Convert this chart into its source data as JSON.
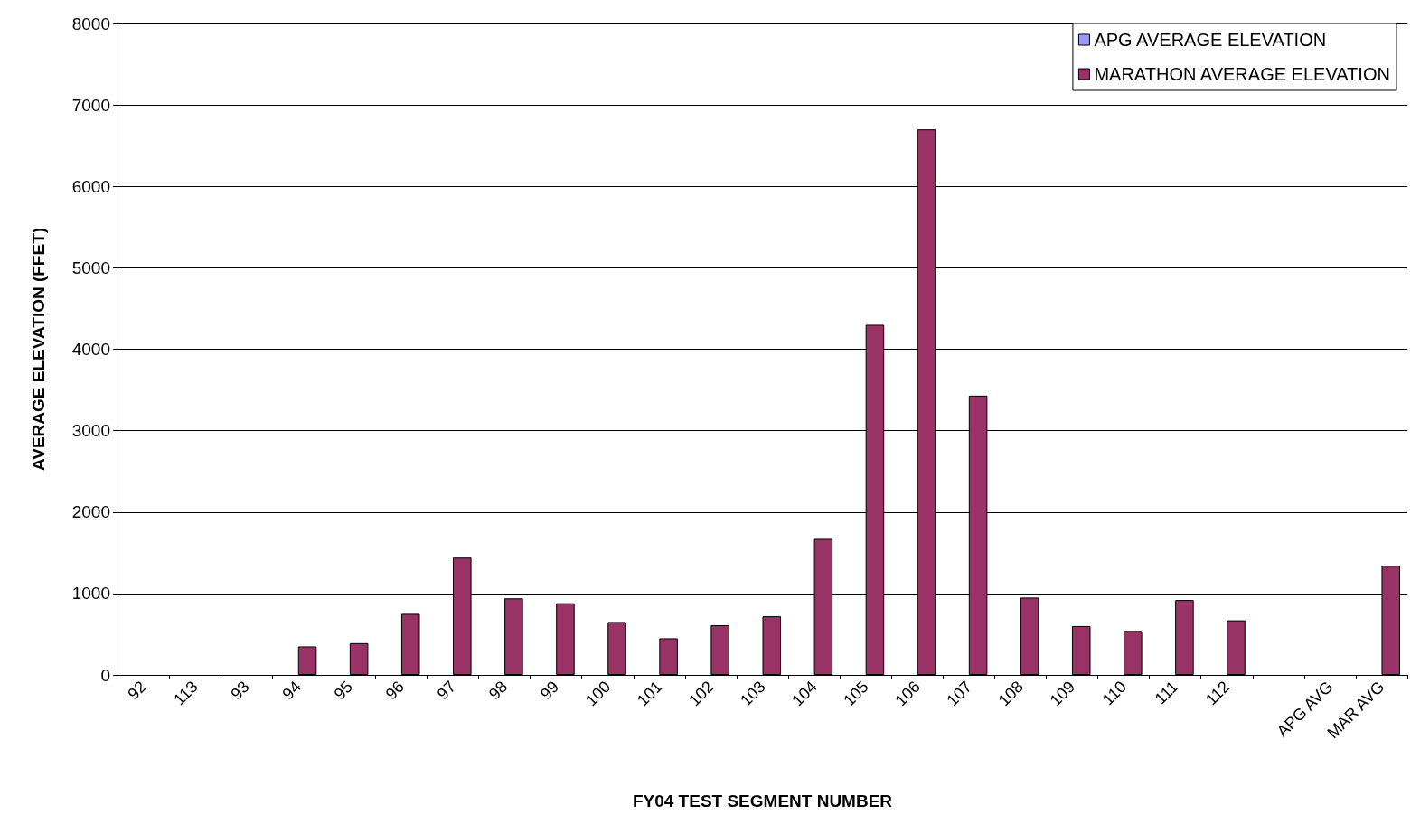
{
  "chart_data": {
    "type": "bar",
    "xlabel": "FY04 TEST SEGMENT NUMBER",
    "ylabel": "AVERAGE ELEVATION (FFET)",
    "categories": [
      "92",
      "113",
      "93",
      "94",
      "95",
      "96",
      "97",
      "98",
      "99",
      "100",
      "101",
      "102",
      "103",
      "104",
      "105",
      "106",
      "107",
      "108",
      "109",
      "110",
      "111",
      "112",
      null,
      "APG AVG",
      "MAR AVG"
    ],
    "series": [
      {
        "name": "APG AVERAGE ELEVATION",
        "color": "#9999ff",
        "values": [
          null,
          null,
          null,
          null,
          null,
          null,
          null,
          null,
          null,
          null,
          null,
          null,
          null,
          null,
          null,
          null,
          null,
          null,
          null,
          null,
          null,
          null,
          null,
          null,
          null
        ]
      },
      {
        "name": "MARATHON AVERAGE ELEVATION",
        "color": "#993366",
        "values": [
          null,
          null,
          null,
          350,
          390,
          750,
          1440,
          940,
          880,
          650,
          450,
          610,
          720,
          1670,
          4300,
          6700,
          3430,
          950,
          600,
          540,
          920,
          670,
          null,
          null,
          1340
        ]
      }
    ],
    "ylim": [
      0,
      8000
    ],
    "yticks": [
      0,
      1000,
      2000,
      3000,
      4000,
      5000,
      6000,
      7000,
      8000
    ],
    "grid": "y",
    "legend": "top right"
  }
}
